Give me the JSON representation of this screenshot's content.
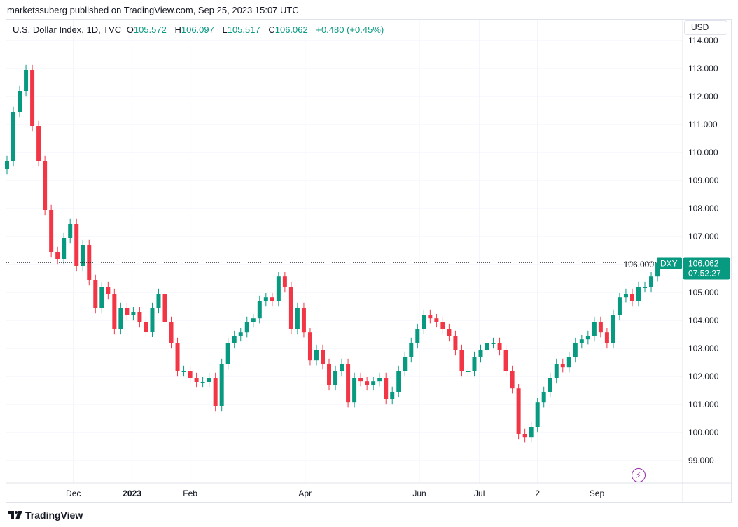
{
  "header": {
    "published": "marketssuberg published on TradingView.com, Sep 25, 2023 15:07 UTC"
  },
  "legend": {
    "symbol": "U.S. Dollar Index, 1D, TVC",
    "o_label": "O",
    "o": "105.572",
    "h_label": "H",
    "h": "106.097",
    "l_label": "L",
    "l": "105.517",
    "c_label": "C",
    "c": "106.062",
    "change": "+0.480 (+0.45%)"
  },
  "currency_button": "USD",
  "price_tag": {
    "ticker": "DXY",
    "price": "106.062",
    "countdown": "07:52:27"
  },
  "footer": {
    "brand": "TradingView"
  },
  "colors": {
    "up": "#089981",
    "down": "#F23645",
    "flash": "#9c27b0"
  },
  "chart_data": {
    "type": "candlestick",
    "title": "U.S. Dollar Index, 1D, TVC",
    "ylim": [
      98.5,
      114
    ],
    "grid": true,
    "y_ticks": [
      "114.000",
      "113.000",
      "112.000",
      "111.000",
      "110.000",
      "109.000",
      "108.000",
      "107.000",
      "106.000",
      "105.000",
      "104.000",
      "103.000",
      "102.000",
      "101.000",
      "100.000",
      "99.000"
    ],
    "y_tick_values": [
      114,
      113,
      112,
      111,
      110,
      109,
      108,
      107,
      106,
      105,
      104,
      103,
      102,
      101,
      100,
      99
    ],
    "x_ticks": [
      {
        "label": "Dec",
        "index": 10.5,
        "bold": false
      },
      {
        "label": "2023",
        "index": 19.8,
        "bold": true
      },
      {
        "label": "Feb",
        "index": 29,
        "bold": false
      },
      {
        "label": "Apr",
        "index": 47.2,
        "bold": false
      },
      {
        "label": "Jun",
        "index": 65.3,
        "bold": false
      },
      {
        "label": "Jul",
        "index": 74.8,
        "bold": false
      },
      {
        "label": "2",
        "index": 84,
        "bold": false
      },
      {
        "label": "Sep",
        "index": 93.4,
        "bold": false
      }
    ],
    "last_price": 106.062,
    "close": [
      109.7,
      111.45,
      112.2,
      112.95,
      110.95,
      109.7,
      107.95,
      106.45,
      106.2,
      106.95,
      107.45,
      105.95,
      106.7,
      105.45,
      104.45,
      105.2,
      104.95,
      103.7,
      104.45,
      104.2,
      104.3,
      103.95,
      103.6,
      104.45,
      104.95,
      103.95,
      103.2,
      102.2,
      102.2,
      101.95,
      101.8,
      101.8,
      101.95,
      100.95,
      102.45,
      103.2,
      103.45,
      103.57,
      103.95,
      104.07,
      104.7,
      104.82,
      104.7,
      105.57,
      105.2,
      103.7,
      104.45,
      103.57,
      102.57,
      102.95,
      102.45,
      101.7,
      102.2,
      102.45,
      101.07,
      101.95,
      101.82,
      101.7,
      101.82,
      101.95,
      101.2,
      101.45,
      102.2,
      102.7,
      103.2,
      103.7,
      104.2,
      104.07,
      103.95,
      103.7,
      103.45,
      102.95,
      102.2,
      102.2,
      102.7,
      102.95,
      103.2,
      103.2,
      102.95,
      102.2,
      101.57,
      99.95,
      99.82,
      100.2,
      101.07,
      101.45,
      101.95,
      102.45,
      102.32,
      102.7,
      103.2,
      103.32,
      103.45,
      103.95,
      103.57,
      103.2,
      104.2,
      104.82,
      104.95,
      104.7,
      105.2,
      105.2,
      105.57,
      106.062
    ]
  }
}
